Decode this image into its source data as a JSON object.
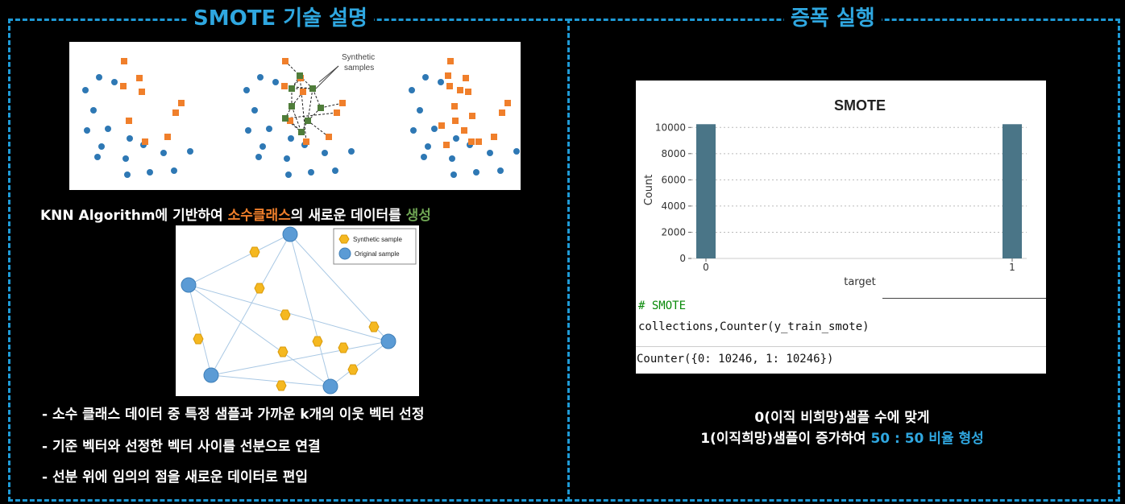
{
  "titles": {
    "left": "SMOTE 기술 설명",
    "right": "증폭 실행"
  },
  "illustration": {
    "synthetic_label_line1": "Synthetic",
    "synthetic_label_line2": "samples",
    "colors": {
      "minority": "#f07f2b",
      "majority": "#2e78b4",
      "synthetic": "#4f7d3a"
    }
  },
  "knn_caption": {
    "part1": "KNN Algorithm에 기반하여 ",
    "highlight1": "소수클래스",
    "part2": "의 새로운 데이터를 ",
    "highlight2": "생성"
  },
  "graph_legend": {
    "synthetic": "Synthetic sample",
    "original": "Original sample"
  },
  "bullets": [
    "- 소수 클래스 데이터 중 특정 샘플과 가까운 k개의 이웃 벡터 선정",
    "- 기준 벡터와 선정한 벡터 사이를 선분으로 연결",
    "- 선분 위에 임의의 점을 새로운 데이터로 편입"
  ],
  "chart_data": {
    "type": "bar",
    "title": "SMOTE",
    "xlabel": "target",
    "ylabel": "Count",
    "categories": [
      "0",
      "1"
    ],
    "values": [
      10246,
      10246
    ],
    "ylim": [
      0,
      11000
    ],
    "yticks": [
      0,
      2000,
      4000,
      6000,
      8000,
      10000
    ],
    "grid": true,
    "bar_color": "#4a7587"
  },
  "code": {
    "comment": "# SMOTE",
    "line": "collections,Counter(y_train_smote)",
    "output": "Counter({0: 10246, 1: 10246})"
  },
  "result": {
    "line1": "0(이직 비희망)샘플 수에 맞게",
    "line2_prefix": "1(이직희망)샘플이 증가하여 ",
    "line2_highlight": "50 : 50 비율 형성"
  }
}
